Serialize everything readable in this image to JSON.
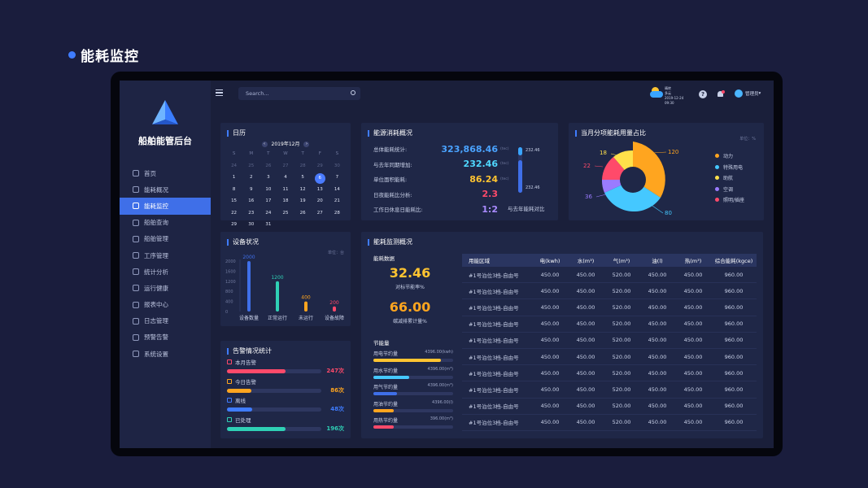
{
  "page_heading": "能耗监控",
  "brand": "船舶能管后台",
  "nav": [
    "首页",
    "能耗概况",
    "能耗监控",
    "船舶查询",
    "船舶管理",
    "工序管理",
    "统计分析",
    "运行健康",
    "报表中心",
    "日志管理",
    "预警告警",
    "系统设置"
  ],
  "search": {
    "placeholder": "Search..."
  },
  "weather": {
    "line1": "晴转",
    "line2": "多云",
    "line3": "2019-12-24 09:30"
  },
  "user": {
    "name": "管理员"
  },
  "calendar": {
    "title": "日历",
    "month": "2019年12月",
    "weekdays": [
      "S",
      "M",
      "T",
      "W",
      "T",
      "F",
      "S"
    ],
    "days": [
      "24",
      "25",
      "26",
      "27",
      "28",
      "29",
      "30",
      "1",
      "2",
      "3",
      "4",
      "5",
      "6",
      "7",
      "8",
      "9",
      "10",
      "11",
      "12",
      "13",
      "14",
      "15",
      "16",
      "17",
      "18",
      "19",
      "20",
      "21",
      "22",
      "23",
      "24",
      "25",
      "26",
      "27",
      "28",
      "29",
      "30",
      "31"
    ],
    "selected": "6"
  },
  "energy": {
    "title": "能源消耗概况",
    "rows": [
      {
        "label": "总体能耗统计:",
        "value": "323,868.46",
        "unit": "(tec)",
        "color": "#4aa3ff"
      },
      {
        "label": "与去年同期增加:",
        "value": "232.46",
        "unit": "(tec)",
        "color": "#4fd8ff"
      },
      {
        "label": "单位面积能耗:",
        "value": "86.24",
        "unit": "(tec)",
        "color": "#ffc431"
      },
      {
        "label": "日夜能耗比分析:",
        "value": "2.3",
        "unit": "",
        "color": "#ff4a6a"
      },
      {
        "label": "工作日休息日能耗比:",
        "value": "1:2",
        "unit": "",
        "color": "#a98bff"
      }
    ],
    "bar_top": "232.46",
    "bar_bottom": "232.46",
    "bar_caption": "与去年能耗对比"
  },
  "pie": {
    "title": "当月分项能耗用量占比",
    "unit": "单位：%",
    "legend": [
      {
        "name": "动力",
        "color": "#ffa51f"
      },
      {
        "name": "特殊用电",
        "color": "#45c8ff"
      },
      {
        "name": "助航",
        "color": "#ffe14a"
      },
      {
        "name": "空调",
        "color": "#9a7bff"
      },
      {
        "name": "照明/插座",
        "color": "#ff4a6a"
      }
    ],
    "labels": [
      "120",
      "80",
      "36",
      "22",
      "18"
    ]
  },
  "device": {
    "title": "设备状况",
    "unit": "单位：台",
    "yticks": [
      "2000",
      "1600",
      "1200",
      "800",
      "400",
      "0"
    ],
    "bars": [
      {
        "name": "设备数量",
        "value": 2000,
        "label": "2000",
        "color": "#3f6fe8"
      },
      {
        "name": "正常运行",
        "value": 1200,
        "label": "1200",
        "color": "#2fd0b5"
      },
      {
        "name": "未运行",
        "value": 400,
        "label": "400",
        "color": "#ffa51f"
      },
      {
        "name": "设备故障",
        "value": 200,
        "label": "200",
        "color": "#ff4a6a"
      }
    ]
  },
  "alarm": {
    "title": "告警情况统计",
    "rows": [
      {
        "label": "本月告警",
        "value": "247次",
        "fraction": 0.62,
        "color": "#ff4a6a"
      },
      {
        "label": "今日告警",
        "value": "86次",
        "fraction": 0.26,
        "color": "#ffa51f"
      },
      {
        "label": "离线",
        "value": "48次",
        "fraction": 0.27,
        "color": "#3f7cff"
      },
      {
        "label": "已处理",
        "value": "196次",
        "fraction": 0.62,
        "color": "#2fd0b5"
      }
    ]
  },
  "monitor": {
    "title": "能耗监测概况",
    "data_title": "能耗数据",
    "n1": "32.46",
    "n1_cap": "对标节能率%",
    "n2": "66.00",
    "n2_cap": "碳减排累计量%",
    "save_title": "节能量",
    "save_rows": [
      {
        "label": "用电节约量",
        "value": "4396.00(kwh)",
        "fraction": 0.85,
        "color": "#ffc431"
      },
      {
        "label": "用水节约量",
        "value": "4396.00(m³)",
        "fraction": 0.45,
        "color": "#45c8ff"
      },
      {
        "label": "用气节约量",
        "value": "4396.00(m³)",
        "fraction": 0.3,
        "color": "#3f6fe8"
      },
      {
        "label": "用油节约量",
        "value": "4396.00(l)",
        "fraction": 0.26,
        "color": "#ffa51f"
      },
      {
        "label": "用热节约量",
        "value": "396.00(m³)",
        "fraction": 0.25,
        "color": "#ff4a6a"
      }
    ],
    "columns": [
      "用能区域",
      "电(kwh)",
      "水(m³)",
      "气(m³)",
      "油(l)",
      "热(m³)",
      "综合能耗(kgce)"
    ],
    "rows": [
      [
        "#1号泊位3档-自由号",
        "450.00",
        "450.00",
        "520.00",
        "450.00",
        "450.00",
        "960.00"
      ],
      [
        "#1号泊位3档-自由号",
        "450.00",
        "450.00",
        "520.00",
        "450.00",
        "450.00",
        "960.00"
      ],
      [
        "#1号泊位3档-自由号",
        "450.00",
        "450.00",
        "520.00",
        "450.00",
        "450.00",
        "960.00"
      ],
      [
        "#1号泊位3档-自由号",
        "450.00",
        "450.00",
        "520.00",
        "450.00",
        "450.00",
        "960.00"
      ],
      [
        "#1号泊位3档-自由号",
        "450.00",
        "450.00",
        "520.00",
        "450.00",
        "450.00",
        "960.00"
      ],
      [
        "#1号泊位3档-自由号",
        "450.00",
        "450.00",
        "520.00",
        "450.00",
        "450.00",
        "960.00"
      ],
      [
        "#1号泊位3档-自由号",
        "450.00",
        "450.00",
        "520.00",
        "450.00",
        "450.00",
        "960.00"
      ],
      [
        "#1号泊位3档-自由号",
        "450.00",
        "450.00",
        "520.00",
        "450.00",
        "450.00",
        "960.00"
      ],
      [
        "#1号泊位3档-自由号",
        "450.00",
        "450.00",
        "520.00",
        "450.00",
        "450.00",
        "960.00"
      ],
      [
        "#1号泊位3档-自由号",
        "450.00",
        "450.00",
        "520.00",
        "450.00",
        "450.00",
        "960.00"
      ]
    ]
  }
}
